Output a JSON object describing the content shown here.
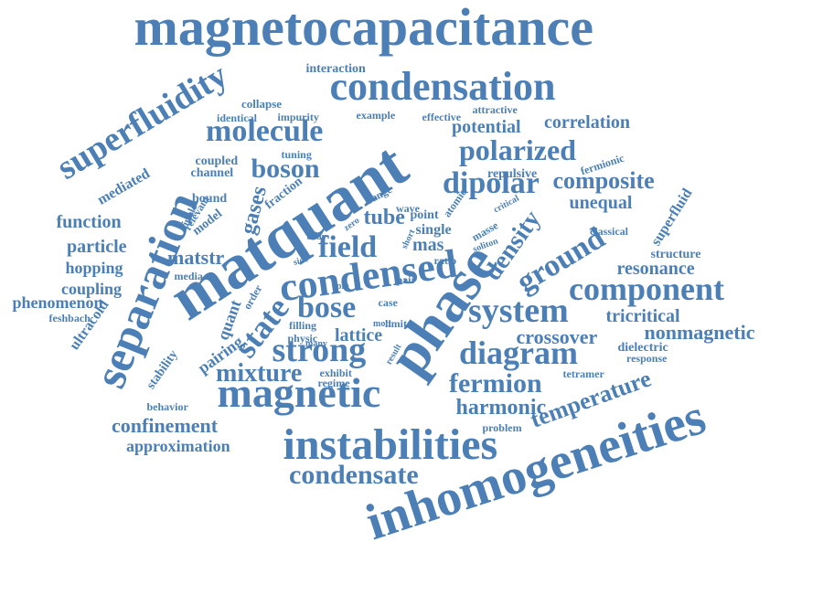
{
  "style": {
    "word_color": "#4b7fb5",
    "background": "#ffffff"
  },
  "words": [
    "magnetocapacitance",
    "condensation",
    "superfluidity",
    "molecule",
    "matquant",
    "polarized",
    "dipolar",
    "separation",
    "phase",
    "condensed",
    "field",
    "density",
    "ground",
    "composite",
    "unequal",
    "resonance",
    "component",
    "system",
    "bose",
    "strong",
    "crossover",
    "nonmagnetic",
    "tricritical",
    "diagram",
    "fermion",
    "magnetic",
    "harmonic",
    "temperature",
    "inhomogeneities",
    "instabilities",
    "condensate",
    "confinement",
    "approximation",
    "mixture",
    "lattice",
    "boson",
    "interaction",
    "collapse",
    "identical",
    "impurity",
    "example",
    "effective",
    "attractive",
    "potential",
    "correlation",
    "tuning",
    "coupled",
    "channel",
    "bound",
    "model",
    "mediated",
    "function",
    "particle",
    "hopping",
    "coupling",
    "phenomenon",
    "feshbach",
    "ultracold",
    "stability",
    "behavior",
    "pairing",
    "quant",
    "matstr",
    "gases",
    "state",
    "fraction",
    "relevant",
    "dipole",
    "media",
    "order",
    "filling",
    "case",
    "physic",
    "many",
    "limit",
    "result",
    "exhibit",
    "regime",
    "spin",
    "zero",
    "range",
    "wave",
    "point",
    "single",
    "mas",
    "ratio",
    "pair",
    "atomic",
    "critical",
    "repulsive",
    "fermionic",
    "superfluid",
    "classical",
    "masse",
    "soliton",
    "structure",
    "dielectric",
    "response",
    "tetramer",
    "problem",
    "mott",
    "body",
    "side",
    "tube",
    "short"
  ]
}
